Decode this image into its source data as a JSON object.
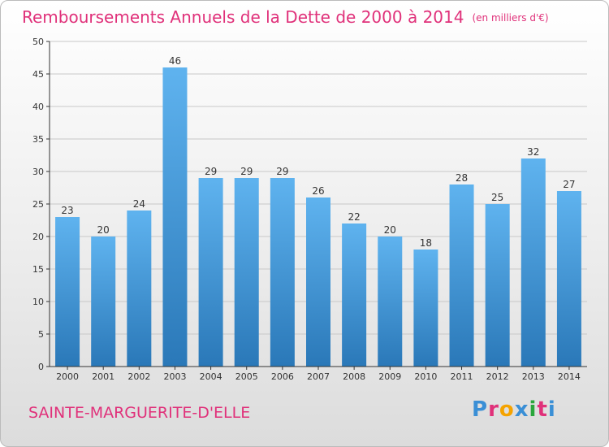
{
  "chart_title": "Remboursements Annuels de la Dette de 2000 à 2014",
  "unit_label": "(en milliers d'€)",
  "place_name": "SAINTE-MARGUERITE-D'ELLE",
  "logo": {
    "letters": [
      "P",
      "r",
      "o",
      "x",
      "i",
      "t",
      "i"
    ],
    "colors": [
      "#3a8fd6",
      "#e0317a",
      "#f5a300",
      "#3a8fd6",
      "#2aa63c",
      "#e0317a",
      "#3a8fd6"
    ]
  },
  "colors": {
    "bar_top": "#5fb3ef",
    "bar_bottom": "#2a78b8",
    "axis": "#333333",
    "grid": "#c8c8c8",
    "title": "#e0317a"
  },
  "chart_data": {
    "type": "bar",
    "title": "Remboursements Annuels de la Dette de 2000 à 2014",
    "ylim": [
      0,
      50
    ],
    "yticks": [
      0,
      5,
      10,
      15,
      20,
      25,
      30,
      35,
      40,
      45,
      50
    ],
    "grid": true,
    "categories": [
      "2000",
      "2001",
      "2002",
      "2003",
      "2004",
      "2005",
      "2006",
      "2007",
      "2008",
      "2009",
      "2010",
      "2011",
      "2012",
      "2013",
      "2014"
    ],
    "values": [
      23,
      20,
      24,
      46,
      29,
      29,
      29,
      26,
      22,
      20,
      18,
      28,
      25,
      32,
      27
    ]
  }
}
